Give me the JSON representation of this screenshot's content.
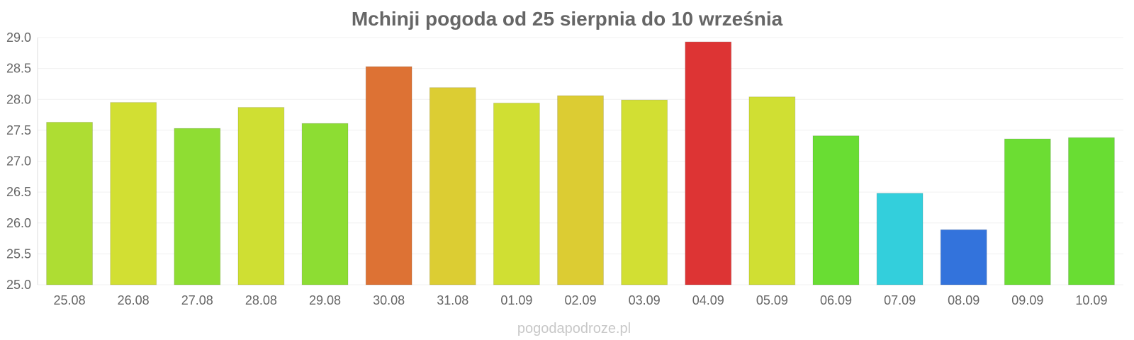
{
  "chart_data": {
    "type": "bar",
    "title": "Mchinji pogoda od 25 sierpnia do 10 września",
    "xlabel": "",
    "ylabel": "",
    "ylim": [
      25.0,
      29.0
    ],
    "yticks": [
      "25.0",
      "25.5",
      "26.0",
      "26.5",
      "27.0",
      "27.5",
      "28.0",
      "28.5",
      "29.0"
    ],
    "categories": [
      "25.08",
      "26.08",
      "27.08",
      "28.08",
      "29.08",
      "30.08",
      "31.08",
      "01.09",
      "02.09",
      "03.09",
      "04.09",
      "05.09",
      "06.09",
      "07.09",
      "08.09",
      "09.09",
      "10.09"
    ],
    "values": [
      27.63,
      27.95,
      27.53,
      27.87,
      27.61,
      28.53,
      28.19,
      27.94,
      28.06,
      27.99,
      28.93,
      28.04,
      27.41,
      26.48,
      25.89,
      27.36,
      27.38
    ],
    "colors": [
      "#aedd33",
      "#d2df33",
      "#8fdd33",
      "#cfdf33",
      "#8ddd33",
      "#dd7234",
      "#dccd33",
      "#d0df33",
      "#dccc33",
      "#d2df33",
      "#dd3434",
      "#d0df33",
      "#69dd33",
      "#33cfdc",
      "#3373dc",
      "#6cdd33",
      "#69dd33"
    ],
    "grid": true
  },
  "footer": "pogodapodroze.pl"
}
